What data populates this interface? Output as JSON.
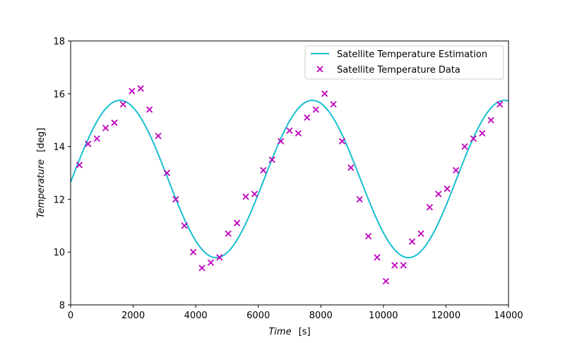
{
  "chart_data": {
    "type": "scatter",
    "xlabel_italic": "Time",
    "xlabel_unit": "[s]",
    "ylabel_italic": "Temperature",
    "ylabel_unit": "[deg]",
    "xlim": [
      0,
      14000
    ],
    "ylim": [
      8,
      18
    ],
    "xticks": [
      0,
      2000,
      4000,
      6000,
      8000,
      10000,
      12000,
      14000
    ],
    "yticks": [
      8,
      10,
      12,
      14,
      16,
      18
    ],
    "grid": false,
    "legend_position": "top-right",
    "series": [
      {
        "name": "Satellite Temperature Estimation",
        "kind": "line",
        "color": "#17becf",
        "model": {
          "offset": 12.77,
          "amplitude": 2.98,
          "period": 6150,
          "phase": -0.04
        }
      },
      {
        "name": "Satellite Temperature Data",
        "kind": "scatter",
        "marker": "x",
        "color": "#bf00bf",
        "x": [
          280,
          560,
          840,
          1120,
          1400,
          1680,
          1960,
          2240,
          2520,
          2800,
          3080,
          3360,
          3640,
          3920,
          4200,
          4480,
          4760,
          5040,
          5320,
          5600,
          5880,
          6160,
          6440,
          6720,
          7000,
          7280,
          7560,
          7840,
          8120,
          8400,
          8680,
          8960,
          9240,
          9520,
          9800,
          10080,
          10360,
          10640,
          10920,
          11200,
          11480,
          11760,
          12040,
          12320,
          12600,
          12880,
          13160,
          13440,
          13720
        ],
        "y": [
          13.3,
          14.1,
          14.3,
          14.7,
          14.9,
          15.6,
          16.1,
          16.2,
          15.4,
          14.4,
          13.0,
          12.0,
          11.0,
          10.0,
          9.4,
          9.6,
          9.8,
          10.7,
          11.1,
          12.1,
          12.2,
          13.1,
          13.5,
          14.2,
          14.6,
          14.5,
          15.1,
          15.4,
          16.0,
          15.6,
          14.2,
          13.2,
          12.0,
          10.6,
          9.8,
          8.9,
          9.5,
          9.5,
          10.4,
          10.7,
          11.7,
          12.2,
          12.4,
          13.1,
          14.0,
          14.3,
          14.5,
          15.0,
          15.6
        ]
      }
    ]
  }
}
